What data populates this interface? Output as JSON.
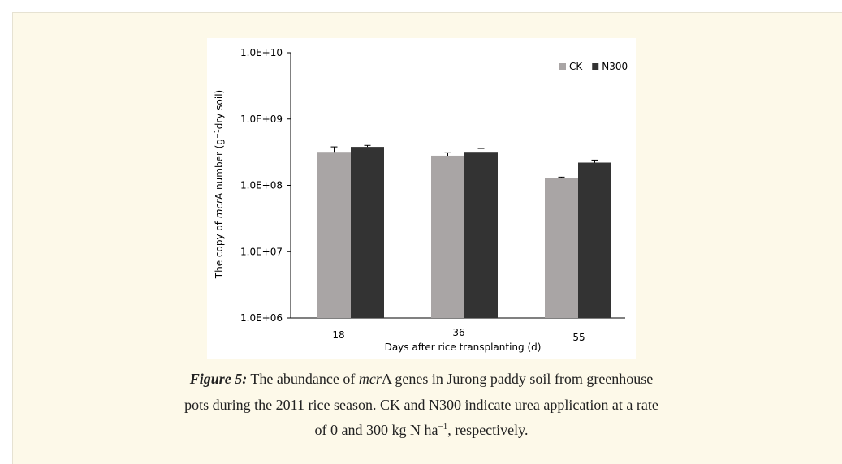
{
  "chart_data": {
    "type": "bar",
    "log_scale": true,
    "ylabel": [
      "The copy of ",
      "mcr",
      "A number (g",
      "−1",
      "dry soil)"
    ],
    "xlabel": "Days after rice transplanting (d)",
    "categories": [
      "18",
      "36",
      "55"
    ],
    "series": [
      {
        "name": "CK",
        "color": "#a9a5a5",
        "values": [
          320000000,
          280000000,
          130000000
        ],
        "errors": [
          60000000,
          30000000,
          3000000
        ]
      },
      {
        "name": "N300",
        "color": "#333333",
        "values": [
          380000000,
          320000000,
          220000000
        ],
        "errors": [
          20000000,
          40000000,
          20000000
        ]
      }
    ],
    "ylim": [
      1000000,
      10000000000
    ],
    "yticks": [
      {
        "value": 1000000,
        "label": "1.0E+06"
      },
      {
        "value": 10000000,
        "label": "1.0E+07"
      },
      {
        "value": 100000000,
        "label": "1.0E+08"
      },
      {
        "value": 1000000000,
        "label": "1.0E+09"
      },
      {
        "value": 10000000000,
        "label": "1.0E+10"
      }
    ],
    "legend": "upper right"
  },
  "caption": {
    "lines": [
      [
        "Figure 5:",
        " The abundance of ",
        "mcr",
        "A genes in Jurong paddy soil from greenhouse"
      ],
      [
        "pots during the 2011 rice season. CK and N300 indicate urea application at a rate"
      ],
      [
        "of 0 and 300 kg N ha",
        "−1",
        ", respectively."
      ]
    ]
  }
}
